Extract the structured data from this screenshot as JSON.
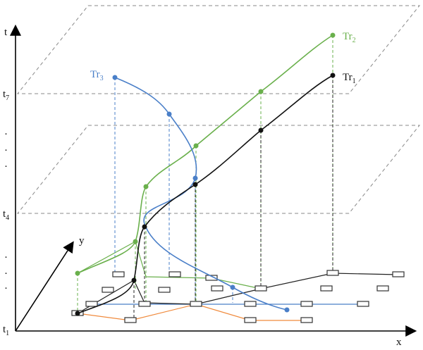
{
  "axes": {
    "t": "t",
    "x": "x",
    "y": "y"
  },
  "time_labels": {
    "t7": {
      "base": "t",
      "sub": "7"
    },
    "t4": {
      "base": "t",
      "sub": "4"
    },
    "t1": {
      "base": "t",
      "sub": "1"
    }
  },
  "ellipsis": "·",
  "trajectories": {
    "tr1": {
      "base": "Tr",
      "sub": "1"
    },
    "tr2": {
      "base": "Tr",
      "sub": "2"
    },
    "tr3": {
      "base": "Tr",
      "sub": "3"
    }
  }
}
